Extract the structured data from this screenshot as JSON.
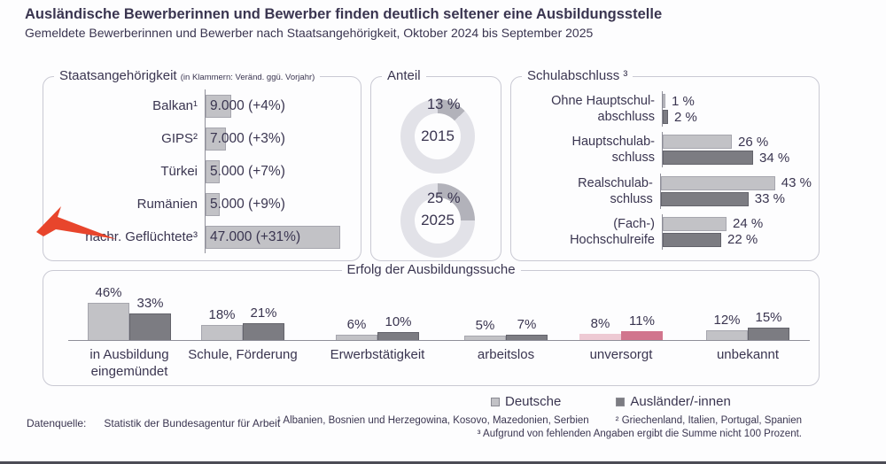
{
  "header": {
    "title": "Ausländische Bewerberinnen und Bewerber finden deutlich seltener eine Ausbildungsstelle",
    "subtitle": "Gemeldete Bewerberinnen und Bewerber nach Staatsangehörigkeit, Oktober 2024 bis September 2025"
  },
  "chart_data": [
    {
      "id": "staatsangehoerigkeit",
      "type": "bar",
      "orientation": "horizontal",
      "title": "Staatsangehörigkeit",
      "title_note": "(in Klammern: Veränd. ggü. Vorjahr)",
      "categories": [
        "Balkan¹",
        "GIPS²",
        "Türkei",
        "Rumänien",
        "nachr. Geflüchtete³"
      ],
      "values": [
        9000,
        7000,
        5000,
        5000,
        47000
      ],
      "bar_labels": [
        "9.000 (+4%)",
        "7.000 (+3%)",
        "5.000 (+7%)",
        "5.000 (+9%)",
        "47.000 (+31%)"
      ],
      "annotation": "red arrow pointing at nachr. Geflüchtete"
    },
    {
      "id": "anteil",
      "type": "pie",
      "title": "Anteil",
      "donuts": [
        {
          "center_label": "2015",
          "value_pct": 13,
          "value_label": "13 %"
        },
        {
          "center_label": "2025",
          "value_pct": 25,
          "value_label": "25 %"
        }
      ]
    },
    {
      "id": "schulabschluss",
      "type": "bar",
      "orientation": "horizontal",
      "title": "Schulabschluss ³",
      "unit": "%",
      "categories": [
        [
          "Ohne Hauptschul-",
          "abschluss"
        ],
        [
          "Hauptschulab-",
          "schluss"
        ],
        [
          "Realschulab-",
          "schluss"
        ],
        [
          "(Fach-)",
          "Hochschulreife"
        ]
      ],
      "series": [
        {
          "name": "Deutsche",
          "values": [
            1,
            26,
            43,
            24
          ],
          "labels": [
            "1 %",
            "26 %",
            "43 %",
            "24 %"
          ]
        },
        {
          "name": "Ausländer/-innen",
          "values": [
            2,
            34,
            33,
            22
          ],
          "labels": [
            "2 %",
            "34 %",
            "33 %",
            "22 %"
          ]
        }
      ]
    },
    {
      "id": "erfolg",
      "type": "bar",
      "orientation": "vertical",
      "title": "Erfolg der Ausbildungssuche",
      "unit": "%",
      "categories": [
        [
          "in Ausbildung",
          "eingemündet"
        ],
        [
          "Schule, Förderung"
        ],
        [
          "Erwerbstätigkeit"
        ],
        [
          "arbeitslos"
        ],
        [
          "unversorgt"
        ],
        [
          "unbekannt"
        ]
      ],
      "series": [
        {
          "name": "Deutsche",
          "values": [
            46,
            18,
            6,
            5,
            8,
            12
          ]
        },
        {
          "name": "Ausländer/-innen",
          "values": [
            33,
            21,
            10,
            7,
            11,
            15
          ]
        }
      ],
      "highlighted_category": "unversorgt"
    }
  ],
  "legend": {
    "items": [
      {
        "label": "Deutsche",
        "swatch": "light-gray"
      },
      {
        "label": "Ausländer/-innen",
        "swatch": "dark-gray"
      }
    ]
  },
  "footer": {
    "source_label": "Datenquelle:",
    "source": "Statistik der Bundesagentur für Arbeit",
    "footnote1": "¹ Albanien, Bosnien und Herzegowina, Kosovo, Mazedonien, Serbien",
    "footnote2": "² Griechenland, Italien, Portugal, Spanien",
    "footnote3": "³ Aufgrund von fehlenden Angaben ergibt die Summe nicht 100 Prozent."
  },
  "colors": {
    "ink": "#3a3550",
    "bar_light": "#c2c2c6",
    "bar_dark": "#7c7c82",
    "pink_light": "#eecad4",
    "pink_dark": "#d1758d",
    "donut_ring": "#e2e2e8",
    "donut_segment": "#b2b2ba",
    "arrow_red": "#e8452c"
  }
}
